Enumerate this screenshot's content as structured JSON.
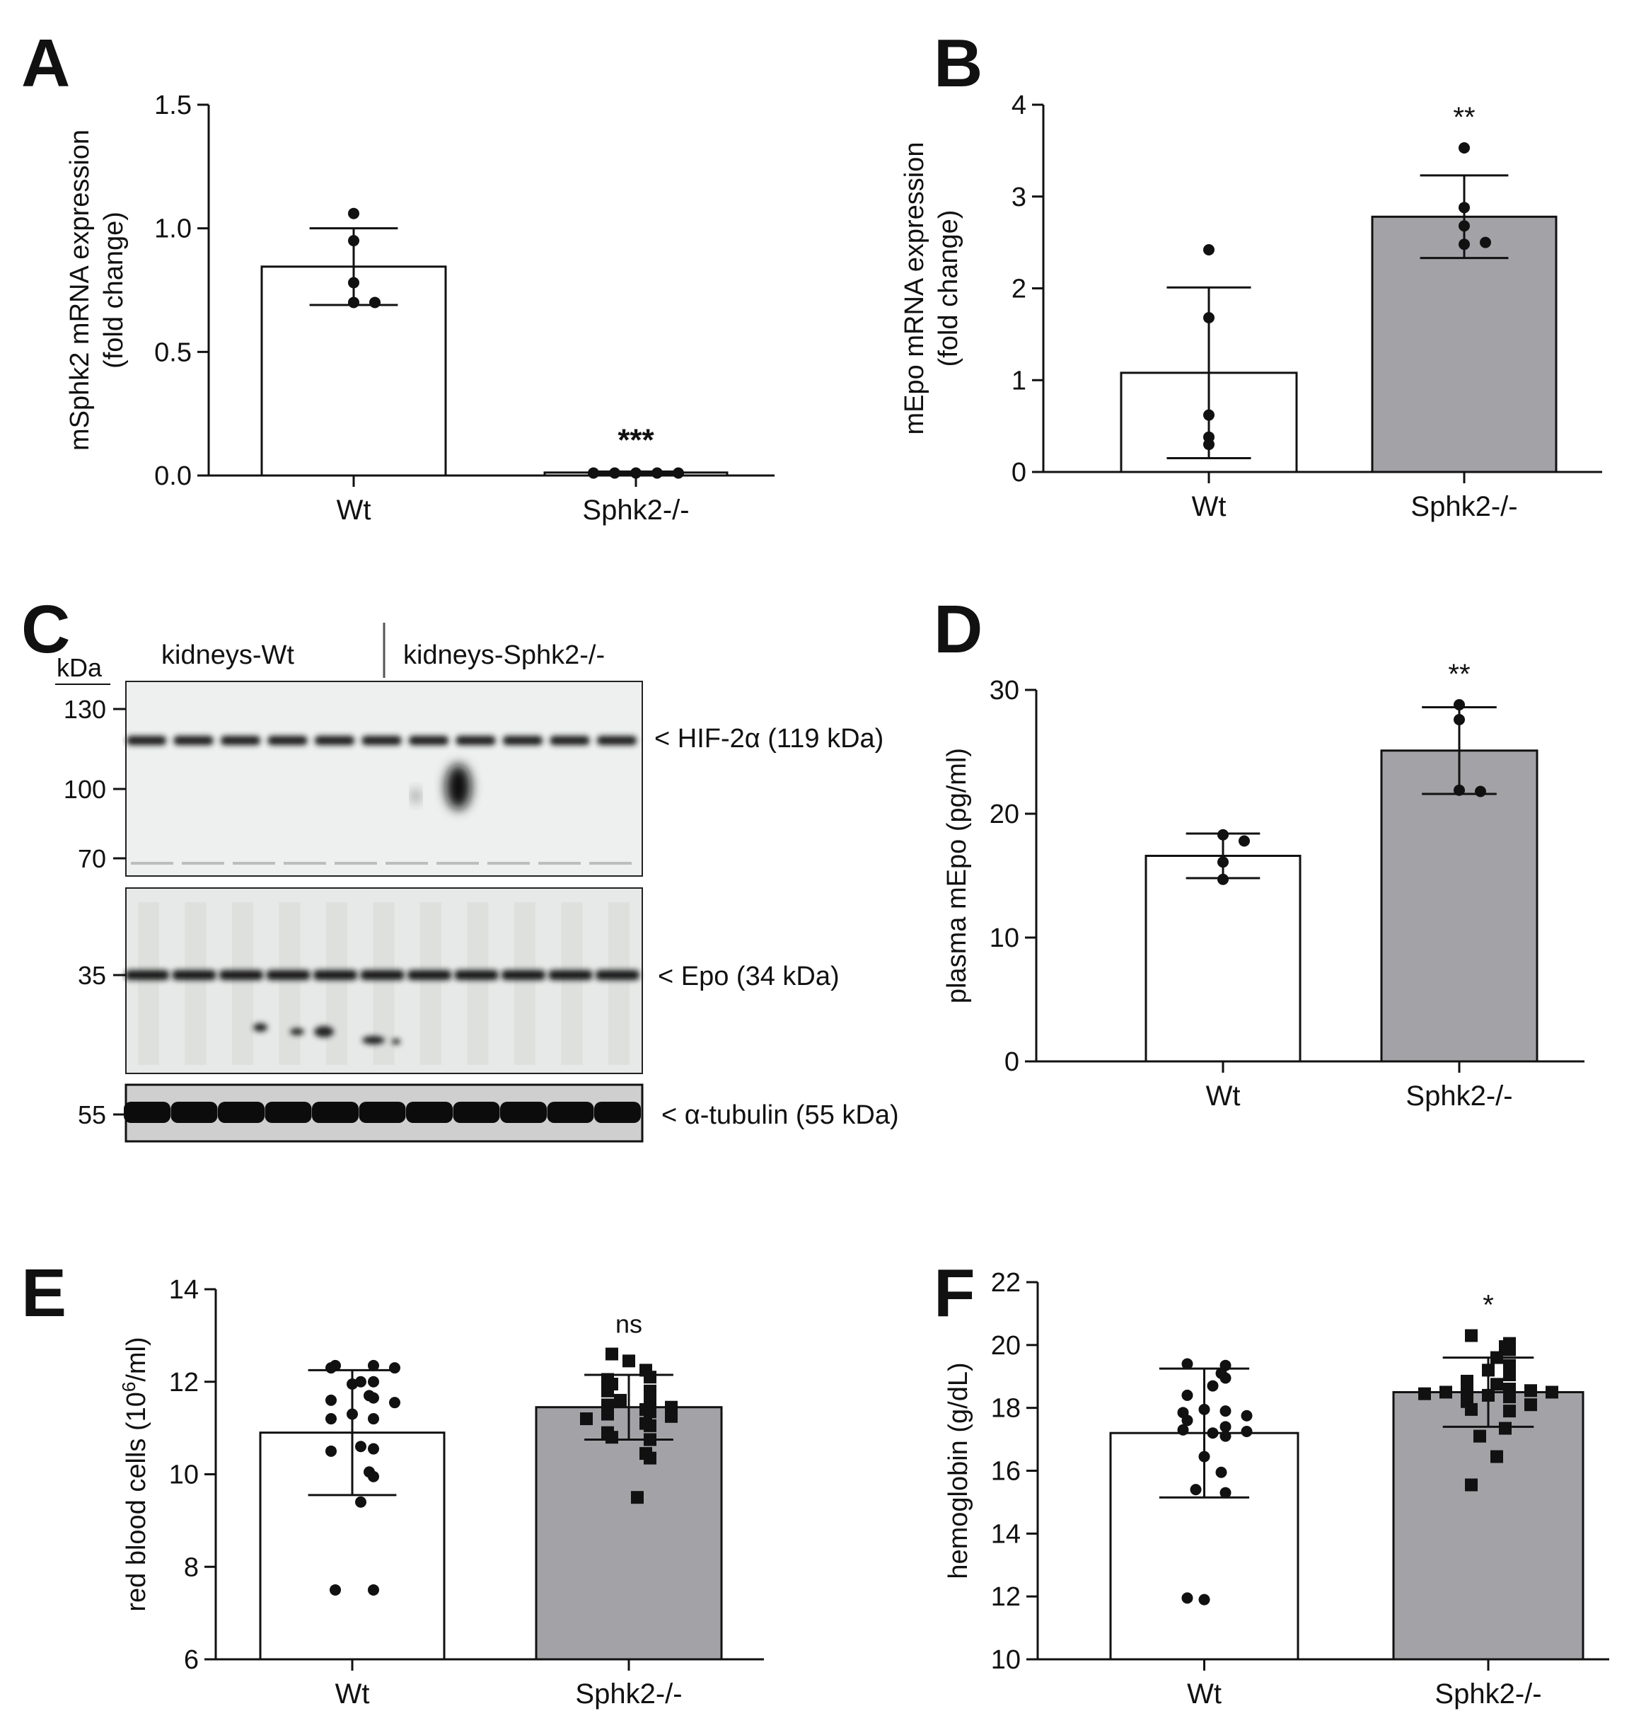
{
  "panels": {
    "A": "A",
    "B": "B",
    "C": "C",
    "D": "D",
    "E": "E",
    "F": "F"
  },
  "colors": {
    "white_bar": "#ffffff",
    "grey_bar": "#a3a3a7",
    "ink": "#111111"
  },
  "chart_data": [
    {
      "id": "A",
      "type": "bar",
      "categories": [
        "Wt",
        "Sphk2-/-"
      ],
      "ylabel": [
        "mSphk2 mRNA expression",
        "(fold change)"
      ],
      "yticks": [
        "0.0",
        "0.5",
        "1.0",
        "1.5"
      ],
      "ylim": [
        0,
        1.5
      ],
      "bar_colors": [
        "#ffffff",
        "#ffffff"
      ],
      "values": [
        0.845,
        0.012
      ],
      "errors": [
        0.155,
        0.004
      ],
      "points": [
        [
          1.06,
          0.95,
          0.78,
          0.7,
          0.7
        ],
        [
          0.01,
          0.01,
          0.01,
          0.01,
          0.01
        ]
      ],
      "marker": "circle",
      "significance": [
        "",
        "***"
      ]
    },
    {
      "id": "B",
      "type": "bar",
      "categories": [
        "Wt",
        "Sphk2-/-"
      ],
      "ylabel": [
        "mEpo mRNA expression",
        "(fold change)"
      ],
      "yticks": [
        "0",
        "1",
        "2",
        "3",
        "4"
      ],
      "ylim": [
        0,
        4
      ],
      "bar_colors": [
        "#ffffff",
        "#a3a3a7"
      ],
      "values": [
        1.08,
        2.78
      ],
      "errors": [
        0.93,
        0.45
      ],
      "points": [
        [
          2.42,
          1.68,
          0.62,
          0.38,
          0.3
        ],
        [
          3.53,
          2.88,
          2.68,
          2.48,
          2.5
        ]
      ],
      "marker": "circle",
      "significance": [
        "",
        "**"
      ]
    },
    {
      "id": "D",
      "type": "bar",
      "categories": [
        "Wt",
        "Sphk2-/-"
      ],
      "ylabel": [
        "plasma mEpo (pg/ml)"
      ],
      "yticks": [
        "0",
        "10",
        "20",
        "30"
      ],
      "ylim": [
        0,
        30
      ],
      "bar_colors": [
        "#ffffff",
        "#a3a3a7"
      ],
      "values": [
        16.6,
        25.1
      ],
      "errors": [
        1.8,
        3.5
      ],
      "points": [
        [
          18.3,
          17.8,
          16.1,
          14.7
        ],
        [
          28.8,
          27.6,
          21.9,
          21.8
        ]
      ],
      "marker": "circle",
      "significance": [
        "",
        "**"
      ]
    },
    {
      "id": "E",
      "type": "bar",
      "categories": [
        "Wt",
        "Sphk2-/-"
      ],
      "ylabel": [
        "red blood cells (10",
        "6",
        "/ml)"
      ],
      "yticks": [
        "6",
        "8",
        "10",
        "12",
        "14"
      ],
      "ylim": [
        6,
        14
      ],
      "bar_colors": [
        "#ffffff",
        "#a3a3a7"
      ],
      "values": [
        10.9,
        11.45
      ],
      "errors": [
        1.35,
        0.7
      ],
      "points": [
        [
          12.35,
          12.35,
          12.3,
          12.3,
          12.0,
          12.0,
          11.95,
          11.7,
          11.65,
          11.6,
          11.55,
          11.3,
          11.2,
          11.2,
          10.6,
          10.55,
          10.5,
          10.05,
          9.95,
          9.4,
          7.5,
          7.5
        ],
        [
          12.6,
          12.45,
          12.25,
          12.1,
          12.05,
          11.95,
          11.8,
          11.8,
          11.6,
          11.55,
          11.5,
          11.45,
          11.4,
          11.35,
          11.3,
          11.25,
          11.2,
          11.1,
          11.05,
          10.9,
          10.8,
          10.75,
          10.45,
          10.35,
          9.5
        ]
      ],
      "marker": "mixed",
      "significance": [
        "",
        "ns"
      ]
    },
    {
      "id": "F",
      "type": "bar",
      "categories": [
        "Wt",
        "Sphk2-/-"
      ],
      "ylabel": [
        "hemoglobin (g/dL)"
      ],
      "yticks": [
        "10",
        "12",
        "14",
        "16",
        "18",
        "20",
        "22"
      ],
      "ylim": [
        10,
        22
      ],
      "bar_colors": [
        "#ffffff",
        "#a3a3a7"
      ],
      "values": [
        17.2,
        18.5
      ],
      "errors": [
        2.05,
        1.1
      ],
      "points": [
        [
          19.4,
          19.35,
          19.1,
          18.95,
          18.7,
          18.4,
          17.95,
          17.9,
          17.85,
          17.75,
          17.6,
          17.4,
          17.3,
          17.25,
          17.2,
          17.1,
          16.45,
          15.95,
          15.4,
          15.3,
          11.95,
          11.9
        ],
        [
          20.3,
          20.05,
          19.95,
          19.85,
          19.6,
          19.35,
          19.2,
          19.05,
          18.85,
          18.75,
          18.6,
          18.6,
          18.55,
          18.5,
          18.5,
          18.45,
          18.4,
          18.35,
          18.2,
          18.1,
          17.95,
          17.9,
          17.35,
          17.1,
          16.45,
          15.55
        ]
      ],
      "marker": "mixed",
      "significance": [
        "",
        "*"
      ]
    }
  ],
  "blot": {
    "kda_label": "kDa",
    "group_labels": [
      "kidneys-Wt",
      "kidneys-Sphk2-/-"
    ],
    "markers_top": [
      "130",
      "100",
      "70"
    ],
    "marker_mid": "35",
    "marker_bottom": "55",
    "band_labels": [
      "< HIF-2α (119 kDa)",
      "< Epo (34 kDa)",
      "< α-tubulin (55 kDa)"
    ],
    "lane_count": 11
  }
}
